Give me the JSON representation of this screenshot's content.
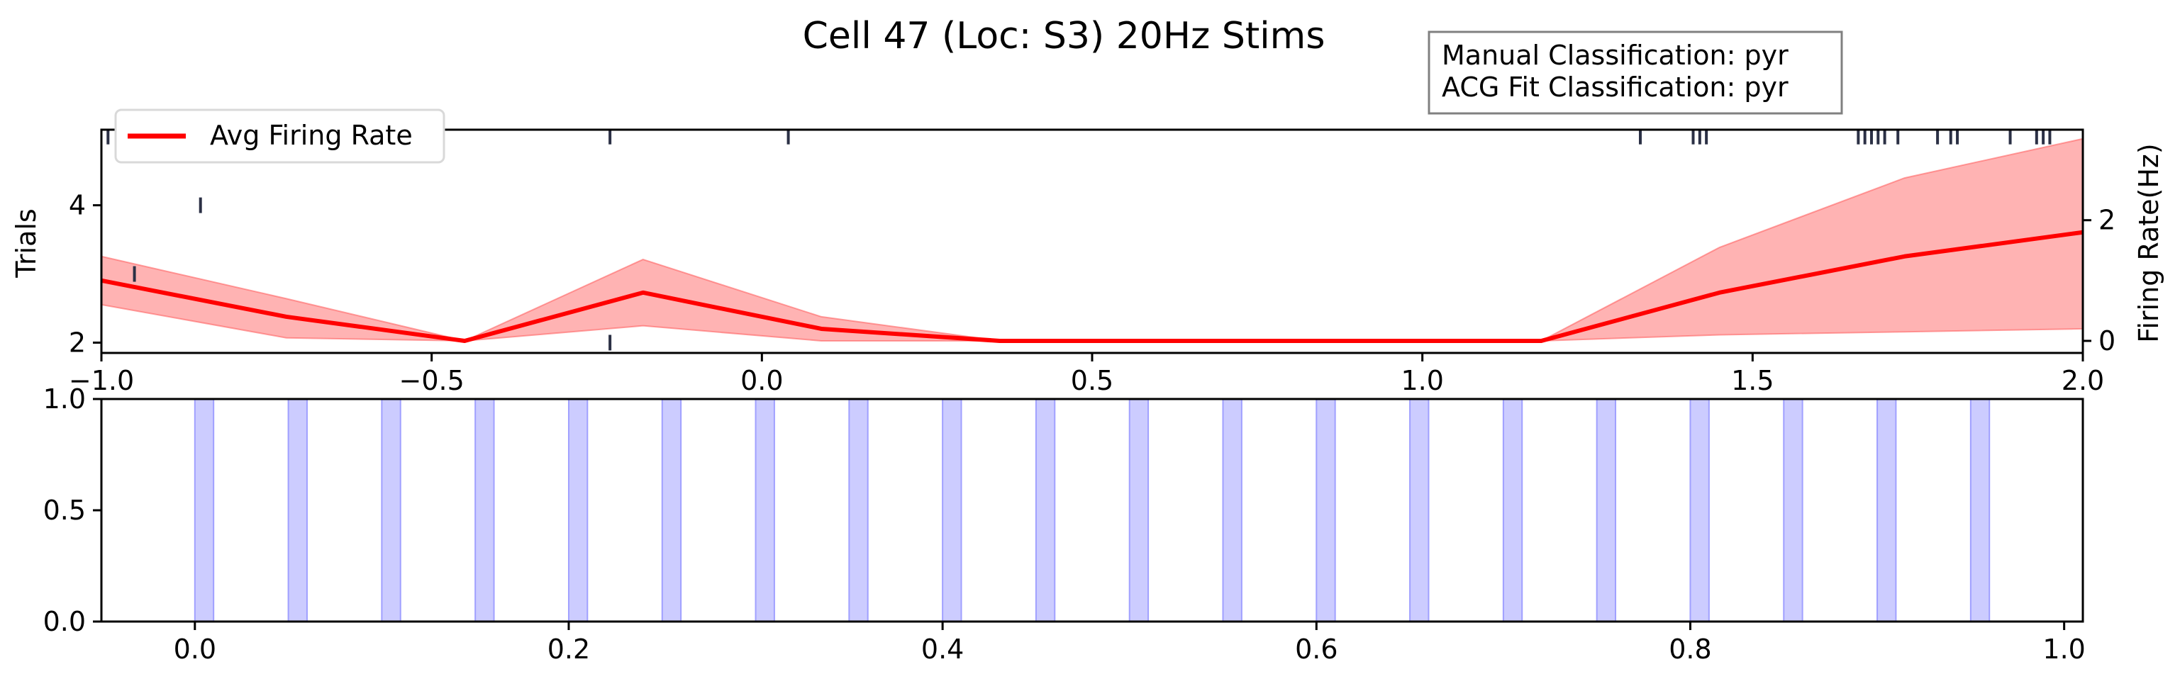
{
  "title": "Cell 47 (Loc: S3) 20Hz Stims",
  "annotation": {
    "line1": "Manual Classification: pyr",
    "line2": "ACG Fit Classification: pyr"
  },
  "chart_data": [
    {
      "type": "line",
      "panel": "top",
      "xlim": [
        -1.0,
        2.0
      ],
      "y_left": {
        "label": "Trials",
        "lim": [
          1.85,
          5.1
        ],
        "ticks": [
          2,
          4
        ]
      },
      "y_right": {
        "label": "Firing Rate(Hz)",
        "lim": [
          -0.2,
          3.5
        ],
        "ticks": [
          0,
          2
        ]
      },
      "x_ticks": [
        {
          "value": -1.0,
          "label": "−1.0"
        },
        {
          "value": -0.5,
          "label": "−0.5"
        },
        {
          "value": 0.0,
          "label": "0.0"
        },
        {
          "value": 0.5,
          "label": "0.5"
        },
        {
          "value": 1.0,
          "label": "1.0"
        },
        {
          "value": 1.5,
          "label": "1.5"
        },
        {
          "value": 2.0,
          "label": "2.0"
        }
      ],
      "legend": {
        "position": "top-left",
        "entries": [
          "Avg Firing Rate"
        ]
      },
      "series": [
        {
          "name": "Avg Firing Rate",
          "color": "#ff0000",
          "band_color": "#ff8080",
          "x": [
            -1.0,
            -0.72,
            -0.45,
            -0.18,
            0.09,
            0.36,
            0.64,
            0.91,
            1.18,
            1.45,
            1.73,
            2.0
          ],
          "y": [
            1.0,
            0.4,
            0.0,
            0.8,
            0.2,
            0.0,
            0.0,
            0.0,
            0.0,
            0.8,
            1.4,
            1.8
          ],
          "y_upper": [
            1.4,
            0.7,
            0.0,
            1.35,
            0.4,
            0.0,
            0.0,
            0.0,
            0.0,
            1.55,
            2.7,
            3.35
          ],
          "y_lower": [
            0.6,
            0.05,
            0.0,
            0.25,
            0.0,
            0.0,
            0.0,
            0.0,
            0.0,
            0.1,
            0.15,
            0.2
          ]
        }
      ],
      "raster": {
        "color": "#2b3045",
        "trials": [
          {
            "trial": 2,
            "spikes": [
              -0.23
            ]
          },
          {
            "trial": 3,
            "spikes": [
              -0.95
            ]
          },
          {
            "trial": 4,
            "spikes": [
              -0.85
            ]
          },
          {
            "trial": 5,
            "spikes": [
              -0.99,
              -0.23,
              0.04,
              1.33,
              1.41,
              1.42,
              1.43,
              1.66,
              1.67,
              1.68,
              1.69,
              1.7,
              1.72,
              1.78,
              1.8,
              1.81,
              1.89,
              1.93,
              1.94,
              1.95
            ]
          }
        ]
      }
    },
    {
      "type": "bar",
      "panel": "bottom",
      "xlim": [
        -0.05,
        1.01
      ],
      "ylim": [
        0.0,
        1.0
      ],
      "x_ticks": [
        {
          "value": 0.0,
          "label": "0.0"
        },
        {
          "value": 0.2,
          "label": "0.2"
        },
        {
          "value": 0.4,
          "label": "0.4"
        },
        {
          "value": 0.6,
          "label": "0.6"
        },
        {
          "value": 0.8,
          "label": "0.8"
        },
        {
          "value": 1.0,
          "label": "1.0"
        }
      ],
      "y_ticks": [
        {
          "value": 0.0,
          "label": "0.0"
        },
        {
          "value": 0.5,
          "label": "0.5"
        },
        {
          "value": 1.0,
          "label": "1.0"
        }
      ],
      "stim_color": "#ccccff",
      "stim_edge_color": "#a0a0ff",
      "stim_width": 0.01,
      "stim_onsets": [
        0.0,
        0.05,
        0.1,
        0.15,
        0.2,
        0.25,
        0.3,
        0.35,
        0.4,
        0.45,
        0.5,
        0.55,
        0.6,
        0.65,
        0.7,
        0.75,
        0.8,
        0.85,
        0.9,
        0.95
      ]
    }
  ]
}
